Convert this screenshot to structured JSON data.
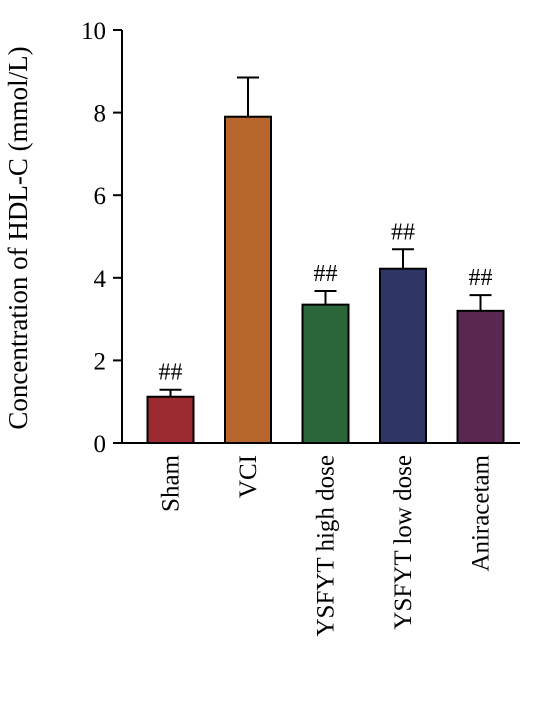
{
  "chart_data": {
    "type": "bar",
    "title": "",
    "xlabel": "",
    "ylabel": "Concentration of HDL-C (mmol/L)",
    "ylim": [
      0,
      10
    ],
    "yticks": [
      0,
      2,
      4,
      6,
      8,
      10
    ],
    "categories": [
      "Sham",
      "VCI",
      "YSFYT high dose",
      "YSFYT low dose",
      "Aniracetam"
    ],
    "values": [
      1.12,
      7.9,
      3.35,
      4.22,
      3.2
    ],
    "errors": [
      0.17,
      0.95,
      0.33,
      0.47,
      0.38
    ],
    "annotations": [
      "##",
      "",
      "##",
      "##",
      "##"
    ],
    "colors": [
      "#9c2a30",
      "#b9652e",
      "#2b6638",
      "#2f3564",
      "#5a2752"
    ],
    "grid": false,
    "legend": "none"
  }
}
